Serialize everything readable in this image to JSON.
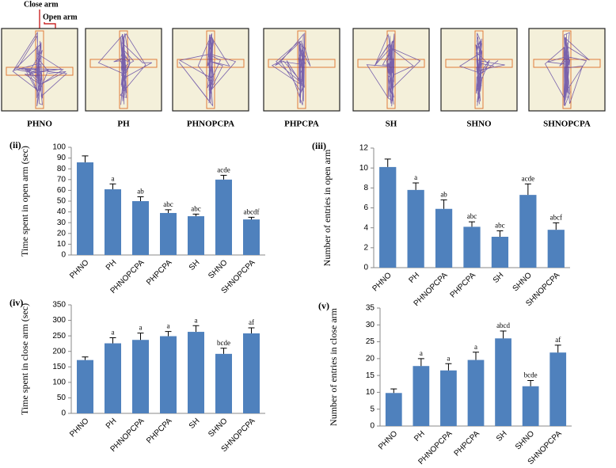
{
  "maze": {
    "labels": [
      "PHNO",
      "PH",
      "PHNOPCPA",
      "PHPCPA",
      "SH",
      "SHNO",
      "SHNOPCPA"
    ],
    "close_arm_label": "Close arm",
    "open_arm_label": "Open arm"
  },
  "chart_data": [
    {
      "type": "bar",
      "panel_label": "(ii)",
      "ylabel": "Time spent in open arm (sec)",
      "categories": [
        "PHNO",
        "PH",
        "PHNOPCPA",
        "PHPCPA",
        "SH",
        "SHNO",
        "SHNOPCPA"
      ],
      "values": [
        86,
        61,
        50,
        39,
        36,
        70,
        33
      ],
      "errors": [
        6,
        5,
        4,
        3,
        2,
        4,
        2
      ],
      "letters": [
        null,
        "a",
        "ab",
        "abc",
        "abc",
        "acde",
        "abcdf"
      ],
      "color": "#4f81bd",
      "ylim": [
        0,
        100
      ],
      "yticks": [
        0,
        10,
        20,
        30,
        40,
        50,
        60,
        70,
        80,
        90,
        100
      ]
    },
    {
      "type": "bar",
      "panel_label": "(iii)",
      "ylabel": "Number of entries in open arm",
      "categories": [
        "PHNO",
        "PH",
        "PHNOPCPA",
        "PHPCPA",
        "SH",
        "SHNO",
        "SHNOPCPA"
      ],
      "values": [
        10.1,
        7.8,
        5.9,
        4.1,
        3.1,
        7.3,
        3.8
      ],
      "errors": [
        0.8,
        0.7,
        0.9,
        0.5,
        0.6,
        1.1,
        0.7
      ],
      "letters": [
        null,
        "a",
        "ab",
        "abc",
        "abc",
        "acde",
        "abcf"
      ],
      "color": "#4f81bd",
      "ylim": [
        0,
        12
      ],
      "yticks": [
        0,
        2,
        4,
        6,
        8,
        10,
        12
      ]
    },
    {
      "type": "bar",
      "panel_label": "(iv)",
      "ylabel": "Time spent in close arm (sec)",
      "categories": [
        "PHNO",
        "PH",
        "PHNOPCPA",
        "PHPCPA",
        "SH",
        "SHNO",
        "SHNOPCPA"
      ],
      "values": [
        172,
        226,
        237,
        249,
        263,
        192,
        258
      ],
      "errors": [
        10,
        18,
        22,
        15,
        20,
        18,
        18
      ],
      "letters": [
        null,
        "a",
        "a",
        "a",
        "a",
        "bcde",
        "af"
      ],
      "color": "#4f81bd",
      "ylim": [
        0,
        350
      ],
      "yticks": [
        0,
        50,
        100,
        150,
        200,
        250,
        300,
        350
      ]
    },
    {
      "type": "bar",
      "panel_label": "(v)",
      "ylabel": "Number of entries in close arm",
      "categories": [
        "PHNO",
        "PH",
        "PHNOPCPA",
        "PHPCPA",
        "SH",
        "SHNO",
        "SHNOPCPA"
      ],
      "values": [
        9.8,
        17.8,
        16.5,
        19.6,
        26,
        11.8,
        21.8
      ],
      "errors": [
        1.2,
        2.2,
        2,
        2.3,
        2.2,
        1.7,
        2.2
      ],
      "letters": [
        null,
        "a",
        "a",
        "a",
        "abcd",
        "bcde",
        "af"
      ],
      "color": "#4f81bd",
      "ylim": [
        0,
        35
      ],
      "yticks": [
        0,
        5,
        10,
        15,
        20,
        25,
        30,
        35
      ]
    }
  ]
}
